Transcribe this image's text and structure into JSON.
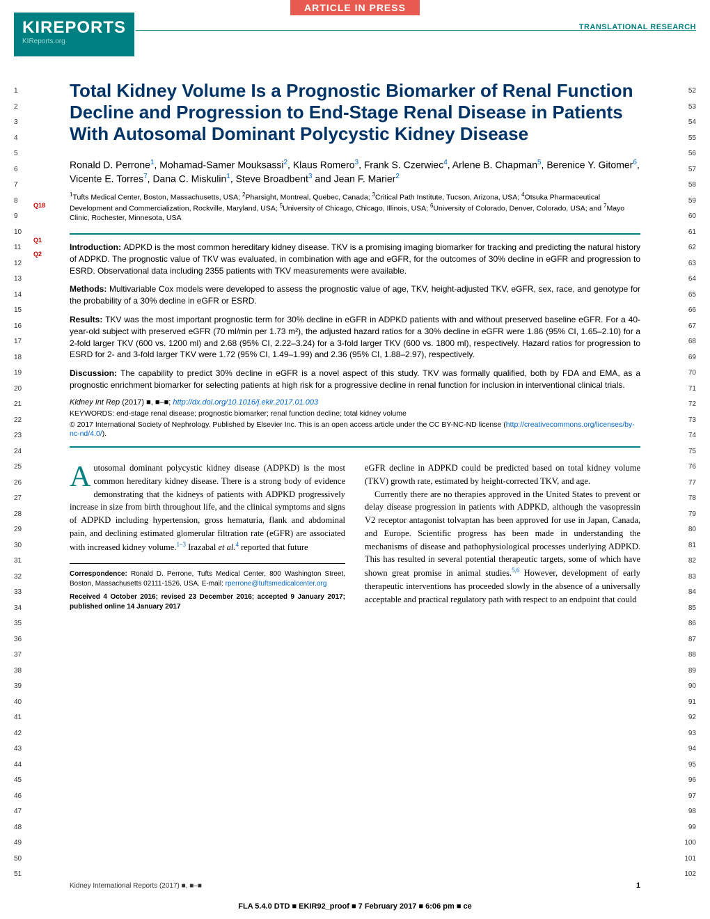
{
  "header": {
    "article_in_press": "ARTICLE IN PRESS",
    "logo_main": "KIREPORTS",
    "logo_sub": "KIReports.org",
    "section_label": "TRANSLATIONAL RESEARCH"
  },
  "queries": {
    "q18": "Q18",
    "q1": "Q1",
    "q2": "Q2"
  },
  "title": "Total Kidney Volume Is a Prognostic Biomarker of Renal Function Decline and Progression to End-Stage Renal Disease in Patients With Autosomal Dominant Polycystic Kidney Disease",
  "authors": {
    "a1": "Ronald D. Perrone",
    "s1": "1",
    "a2": "Mohamad-Samer Mouksassi",
    "s2": "2",
    "a3": "Klaus Romero",
    "s3": "3",
    "a4": "Frank S. Czerwiec",
    "s4": "4",
    "a5": "Arlene B. Chapman",
    "s5": "5",
    "a6": "Berenice Y. Gitomer",
    "s6": "6",
    "a7": "Vicente E. Torres",
    "s7": "7",
    "a8": "Dana C. Miskulin",
    "s8": "1",
    "a9": "Steve Broadbent",
    "s9": "3",
    "a10": "Jean F. Marier",
    "s10": "2",
    "and": " and "
  },
  "affiliations": {
    "text1": "Tufts Medical Center, Boston, Massachusetts, USA; ",
    "text2": "Pharsight, Montreal, Quebec, Canada; ",
    "text3": "Critical Path Institute, Tucson, Arizona, USA; ",
    "text4": "Otsuka Pharmaceutical Development and Commercialization, Rockville, Maryland, USA; ",
    "text5": "University of Chicago, Chicago, Illinois, USA; ",
    "text6": "University of Colorado, Denver, Colorado, USA; and ",
    "text7": "Mayo Clinic, Rochester, Minnesota, USA"
  },
  "abstract": {
    "intro_label": "Introduction: ",
    "intro": "ADPKD is the most common hereditary kidney disease. TKV is a promising imaging biomarker for tracking and predicting the natural history of ADPKD. The prognostic value of TKV was evaluated, in combination with age and eGFR, for the outcomes of 30% decline in eGFR and progression to ESRD. Observational data including 2355 patients with TKV measurements were available.",
    "methods_label": "Methods: ",
    "methods": "Multivariable Cox models were developed to assess the prognostic value of age, TKV, height-adjusted TKV, eGFR, sex, race, and genotype for the probability of a 30% decline in eGFR or ESRD.",
    "results_label": "Results: ",
    "results": "TKV was the most important prognostic term for 30% decline in eGFR in ADPKD patients with and without preserved baseline eGFR. For a 40-year-old subject with preserved eGFR (70 ml/min per 1.73 m²), the adjusted hazard ratios for a 30% decline in eGFR were 1.86 (95% CI, 1.65–2.10) for a 2-fold larger TKV (600 vs. 1200 ml) and 2.68 (95% CI, 2.22–3.24) for a 3-fold larger TKV (600 vs. 1800 ml), respectively. Hazard ratios for progression to ESRD for 2- and 3-fold larger TKV were 1.72 (95% CI, 1.49–1.99) and 2.36 (95% CI, 1.88–2.97), respectively.",
    "discussion_label": "Discussion: ",
    "discussion": "The capability to predict 30% decline in eGFR is a novel aspect of this study. TKV was formally qualified, both by FDA and EMA, as a prognostic enrichment biomarker for selecting patients at high risk for a progressive decline in renal function for inclusion in interventional clinical trials."
  },
  "citation": {
    "journal": "Kidney Int Rep",
    "year": " (2017) ",
    "placeholder": "■, ■–■; ",
    "doi": "http://dx.doi.org/10.1016/j.ekir.2017.01.003"
  },
  "keywords": {
    "label": "KEYWORDS: ",
    "text": "end-stage renal disease; prognostic biomarker; renal function decline; total kidney volume"
  },
  "license": {
    "copyright": "© 2017 International Society of Nephrology. Published by Elsevier Inc. This is an open access article under the CC BY-NC-ND license (",
    "url": "http://creativecommons.org/licenses/by-nc-nd/4.0/",
    "close": ")."
  },
  "body": {
    "dropcap": "A",
    "para1a": "utosomal dominant polycystic kidney disease (ADPKD) is the most common hereditary kidney disease. There is a strong body of evidence demonstrating that the kidneys of patients with ADPKD progressively increase in size from birth throughout life, and the clinical symptoms and signs of ADPKD including hypertension, gross hematuria, flank and abdominal pain, and declining estimated glomerular filtration rate (eGFR) are associated with increased kidney volume.",
    "ref1": "1–3",
    "para1b": " Irazabal ",
    "para1c": "et al.",
    "ref2": "4",
    "para1d": " reported that future",
    "para2": "eGFR decline in ADPKD could be predicted based on total kidney volume (TKV) growth rate, estimated by height-corrected TKV, and age.",
    "para3a": "Currently there are no therapies approved in the United States to prevent or delay disease progression in patients with ADPKD, although the vasopressin V2 receptor antagonist tolvaptan has been approved for use in Japan, Canada, and Europe. Scientific progress has been made in understanding the mechanisms of disease and pathophysiological processes underlying ADPKD. This has resulted in several potential therapeutic targets, some of which have shown great promise in animal studies.",
    "ref3": "5,6",
    "para3b": " However, development of early therapeutic interventions has proceeded slowly in the absence of a universally acceptable and practical regulatory path with respect to an endpoint that could"
  },
  "correspondence": {
    "label": "Correspondence: ",
    "text": "Ronald D. Perrone, Tufts Medical Center, 800 Washington Street, Boston, Massachusetts 02111-1526, USA. E-mail: ",
    "email": "rperrone@tuftsmedicalcenter.org",
    "received": "Received 4 October 2016; revised 23 December 2016; accepted 9 January 2017; published online 14 January 2017"
  },
  "footer": {
    "journal": "Kidney International Reports (2017) ■, ■–■",
    "page": "1",
    "meta": "FLA 5.4.0 DTD ■ EKIR92_proof ■ 7 February 2017 ■ 6:06 pm ■ ce"
  },
  "line_numbers": {
    "left_start": 1,
    "left_end": 51,
    "right_start": 52,
    "right_end": 102
  }
}
